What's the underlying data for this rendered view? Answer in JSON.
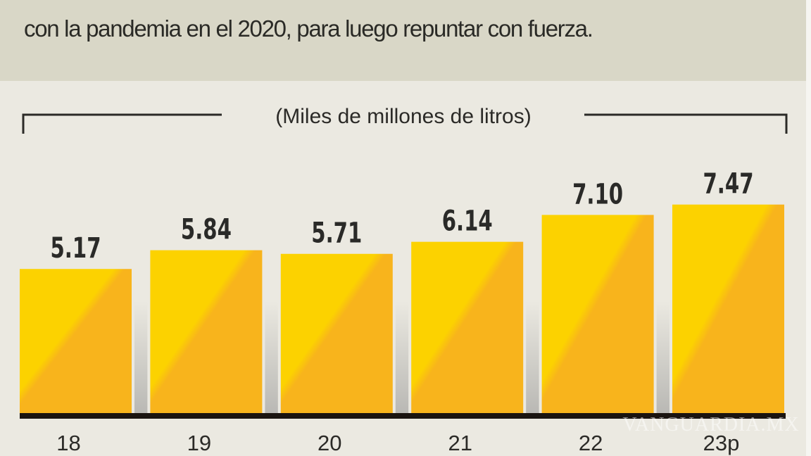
{
  "header": {
    "text": "con la pandemia en el 2020, para luego repuntar con fuerza."
  },
  "watermark": "VANGUARDIA.MX",
  "colors": {
    "bar_light": "#fcd200",
    "bar_dark": "#f8b41c",
    "baseline": "#1a1410",
    "header_bg": "#d9d7c7",
    "chart_bg": "#ebe9e1"
  },
  "chart_data": {
    "type": "bar",
    "title": "",
    "unit_label": "(Miles de millones de litros)",
    "categories": [
      "18",
      "19",
      "20",
      "21",
      "22",
      "23p"
    ],
    "values": [
      5.17,
      5.84,
      5.71,
      6.14,
      7.1,
      7.47
    ],
    "value_labels": [
      "5.17",
      "5.84",
      "5.71",
      "6.14",
      "7.10",
      "7.47"
    ],
    "ylim": [
      0,
      7.47
    ],
    "grid": false
  }
}
